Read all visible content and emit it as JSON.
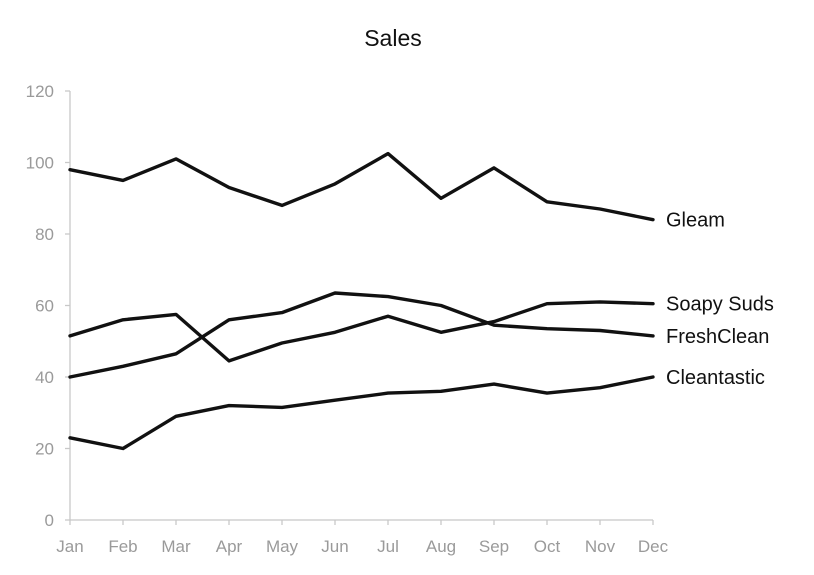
{
  "chart_data": {
    "type": "line",
    "title": "Sales",
    "xlabel": "",
    "ylabel": "",
    "categories": [
      "Jan",
      "Feb",
      "Mar",
      "Apr",
      "May",
      "Jun",
      "Jul",
      "Aug",
      "Sep",
      "Oct",
      "Nov",
      "Dec"
    ],
    "ylim": [
      0,
      120
    ],
    "yticks": [
      "0",
      "20",
      "40",
      "60",
      "80",
      "100",
      "120"
    ],
    "grid": false,
    "legend": "direct labels at line ends (right)",
    "series": [
      {
        "name": "Gleam",
        "values": [
          98,
          95,
          101,
          93,
          88,
          94,
          102.5,
          90,
          98.5,
          89,
          87,
          84
        ]
      },
      {
        "name": "FreshClean",
        "values": [
          40,
          43,
          46.5,
          56,
          58,
          63.5,
          62.5,
          60,
          54.5,
          53.5,
          53,
          51.5
        ]
      },
      {
        "name": "Soapy Suds",
        "values": [
          51.5,
          56,
          57.5,
          44.5,
          49.5,
          52.5,
          57,
          52.5,
          55.5,
          60.5,
          61,
          60.5
        ]
      },
      {
        "name": "Cleantastic",
        "values": [
          23,
          20,
          29,
          32,
          31.5,
          33.5,
          35.5,
          36,
          38,
          35.5,
          37,
          40
        ]
      }
    ],
    "line_color": "#111111",
    "axis_color": "#c8c8c8",
    "tick_label_color": "#9a9a9a"
  }
}
